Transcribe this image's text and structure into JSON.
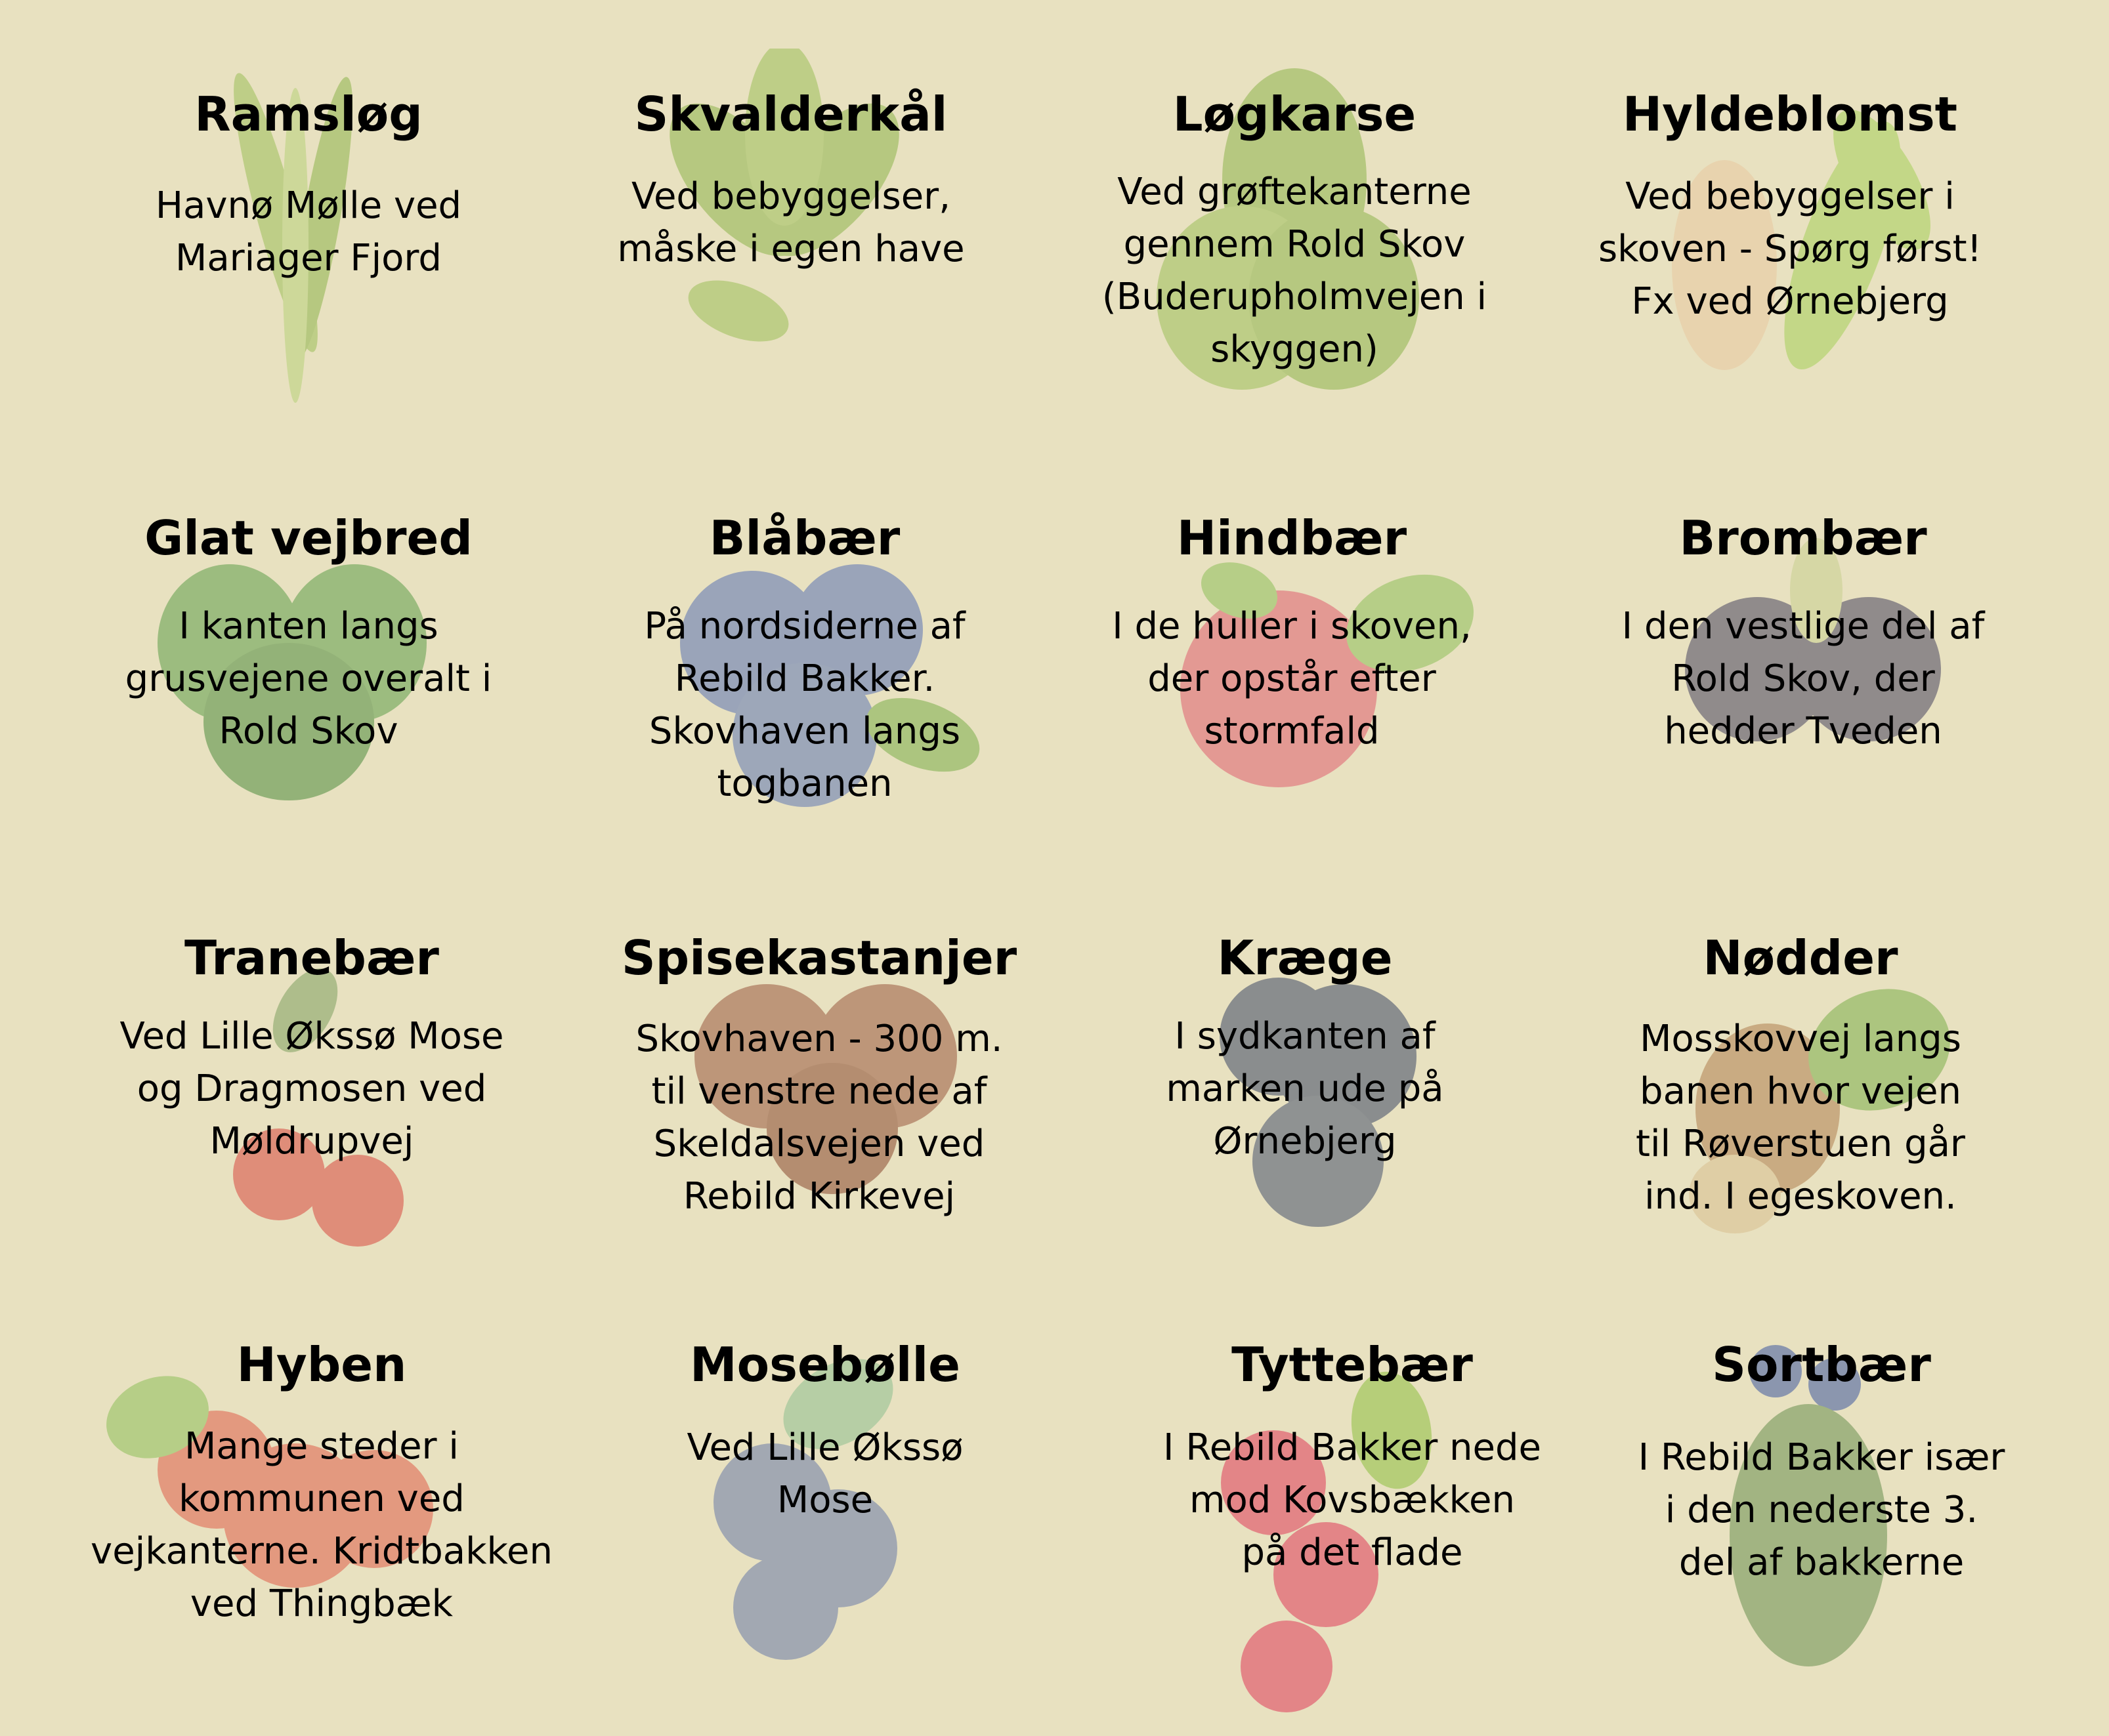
{
  "background_color": "#e8e1c0",
  "items": [
    {
      "title": "Ramsløg",
      "text": "Havnø Mølle ved\nMariager Fjord",
      "illustration": "wild-garlic-leaves-icon"
    },
    {
      "title": "Skvalderkål",
      "text": "Ved bebyggelser,\nmåske i egen have",
      "illustration": "ground-elder-leaves-icon"
    },
    {
      "title": "Løgkarse",
      "text": "Ved grøftekanterne\ngennem Rold Skov\n(Buderupholmvejen i\nskyggen)",
      "illustration": "garlic-mustard-icon"
    },
    {
      "title": "Hyldeblomst",
      "text": "Ved bebyggelser i\nskoven - Spørg først!\nFx ved Ørnebjerg",
      "illustration": "elderflower-icon"
    },
    {
      "title": "Glat vejbred",
      "text": "I kanten langs\ngrusvejene overalt i\nRold Skov",
      "illustration": "plantain-icon"
    },
    {
      "title": "Blåbær",
      "text": "På nordsiderne af\nRebild Bakker.\nSkovhaven langs\ntogbanen",
      "illustration": "blueberry-icon"
    },
    {
      "title": "Hindbær",
      "text": "I de huller i skoven,\nder opstår efter\nstormfald",
      "illustration": "raspberry-icon"
    },
    {
      "title": "Brombær",
      "text": "I den vestlige del af\nRold Skov, der\nhedder Tveden",
      "illustration": "blackberry-icon"
    },
    {
      "title": "Tranebær",
      "text": "Ved Lille Økssø Mose\nog Dragmosen ved\nMøldrupvej",
      "illustration": "cranberry-icon"
    },
    {
      "title": "Spisekastanjer",
      "text": "Skovhaven - 300 m.\ntil venstre nede af\nSkeldalsvejen ved\nRebild Kirkevej",
      "illustration": "chestnut-icon"
    },
    {
      "title": "Kræge",
      "text": "I sydkanten af\nmarken ude på\nØrnebjerg",
      "illustration": "plum-icon"
    },
    {
      "title": "Nødder",
      "text": "Mosskovvej langs\nbanen hvor vejen\ntil Røverstuen går\nind. I egeskoven.",
      "illustration": "hazelnut-icon"
    },
    {
      "title": "Hyben",
      "text": "Mange steder i\nkommunen ved\nvejkanterne. Kridtbakken\nved Thingbæk",
      "illustration": "rosehip-icon"
    },
    {
      "title": "Mosebølle",
      "text": "Ved Lille Økssø\nMose",
      "illustration": "bog-bilberry-icon"
    },
    {
      "title": "Tyttebær",
      "text": "I Rebild Bakker nede\nmod Kovsbækken\npå det flade",
      "illustration": "lingonberry-icon"
    },
    {
      "title": "Sortbær",
      "text": "I Rebild Bakker især\ni den nederste 3.\ndel af bakkerne",
      "illustration": "crowberry-icon"
    }
  ]
}
